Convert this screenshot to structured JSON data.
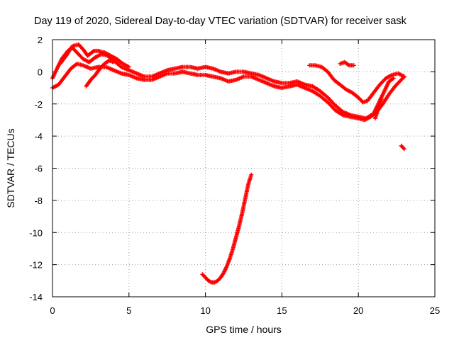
{
  "chart_data": {
    "type": "scatter",
    "title": "Day 119 of 2020, Sidereal Day-to-day VTEC variation (SDTVAR) for receiver sask",
    "xlabel": "GPS time / hours",
    "ylabel": "SDTVAR / TECUs",
    "xlim": [
      0,
      25
    ],
    "ylim": [
      -14,
      2
    ],
    "xticks": [
      0,
      5,
      10,
      15,
      20,
      25
    ],
    "yticks": [
      2,
      0,
      -2,
      -4,
      -6,
      -8,
      -10,
      -12,
      -14
    ],
    "grid": true,
    "marker": "+",
    "color": "#ff0000",
    "series": [
      {
        "name": "main-band-a",
        "points": [
          [
            0,
            -0.4
          ],
          [
            0.3,
            0.2
          ],
          [
            0.6,
            0.8
          ],
          [
            1.0,
            1.3
          ],
          [
            1.3,
            1.5
          ],
          [
            1.6,
            1.2
          ],
          [
            2.0,
            0.8
          ],
          [
            2.4,
            0.6
          ],
          [
            2.8,
            0.9
          ],
          [
            3.2,
            1.1
          ],
          [
            3.6,
            1.0
          ],
          [
            4.0,
            0.7
          ],
          [
            4.5,
            0.3
          ],
          [
            5.0,
            0.1
          ],
          [
            5.5,
            -0.1
          ],
          [
            6.0,
            -0.3
          ],
          [
            6.5,
            -0.3
          ],
          [
            7.0,
            -0.1
          ],
          [
            7.5,
            0.1
          ],
          [
            8.0,
            0.2
          ],
          [
            8.5,
            0.3
          ],
          [
            9.0,
            0.3
          ],
          [
            9.5,
            0.2
          ],
          [
            10.0,
            0.3
          ],
          [
            10.5,
            0.2
          ],
          [
            11.0,
            0.0
          ],
          [
            11.5,
            -0.1
          ],
          [
            12.0,
            0.0
          ],
          [
            12.5,
            0.0
          ],
          [
            13.0,
            -0.1
          ],
          [
            13.5,
            -0.2
          ],
          [
            14.0,
            -0.4
          ],
          [
            14.5,
            -0.6
          ],
          [
            15.0,
            -0.7
          ],
          [
            15.5,
            -0.7
          ],
          [
            16.0,
            -0.6
          ],
          [
            16.5,
            -0.8
          ],
          [
            17.0,
            -0.9
          ],
          [
            17.5,
            -1.2
          ],
          [
            18.0,
            -1.6
          ],
          [
            18.5,
            -2.1
          ],
          [
            19.0,
            -2.5
          ],
          [
            19.5,
            -2.7
          ],
          [
            20.0,
            -2.8
          ],
          [
            20.5,
            -2.9
          ],
          [
            21.0,
            -2.6
          ],
          [
            21.2,
            -2.2
          ],
          [
            21.5,
            -1.6
          ],
          [
            21.8,
            -1.0
          ],
          [
            22.0,
            -0.6
          ],
          [
            22.3,
            -0.4
          ]
        ]
      },
      {
        "name": "main-band-b",
        "points": [
          [
            0,
            -1.0
          ],
          [
            0.4,
            -0.8
          ],
          [
            0.8,
            -0.3
          ],
          [
            1.2,
            0.2
          ],
          [
            1.6,
            0.5
          ],
          [
            2.0,
            0.4
          ],
          [
            2.5,
            0.2
          ],
          [
            3.0,
            0.3
          ],
          [
            3.5,
            0.3
          ],
          [
            4.0,
            0.1
          ],
          [
            4.5,
            -0.1
          ],
          [
            5.0,
            -0.2
          ],
          [
            5.5,
            -0.4
          ],
          [
            6.0,
            -0.5
          ],
          [
            6.5,
            -0.5
          ],
          [
            7.0,
            -0.3
          ],
          [
            7.5,
            -0.1
          ],
          [
            8.0,
            -0.1
          ],
          [
            8.5,
            0.0
          ],
          [
            9.0,
            -0.1
          ],
          [
            9.5,
            -0.2
          ],
          [
            10.0,
            -0.2
          ],
          [
            10.5,
            -0.3
          ],
          [
            11.0,
            -0.4
          ],
          [
            11.5,
            -0.6
          ],
          [
            12.0,
            -0.5
          ],
          [
            12.5,
            -0.3
          ],
          [
            13.0,
            -0.3
          ],
          [
            13.5,
            -0.5
          ],
          [
            14.0,
            -0.7
          ],
          [
            14.5,
            -0.9
          ],
          [
            15.0,
            -1.0
          ],
          [
            15.5,
            -0.9
          ],
          [
            16.0,
            -0.8
          ],
          [
            16.5,
            -1.0
          ],
          [
            17.0,
            -1.2
          ],
          [
            17.5,
            -1.5
          ],
          [
            18.0,
            -1.9
          ],
          [
            18.5,
            -2.4
          ],
          [
            19.0,
            -2.7
          ],
          [
            19.5,
            -2.8
          ],
          [
            20.0,
            -2.9
          ],
          [
            20.4,
            -3.0
          ],
          [
            20.8,
            -2.8
          ],
          [
            21.2,
            -2.5
          ],
          [
            21.6,
            -2.0
          ],
          [
            22.0,
            -1.4
          ],
          [
            22.4,
            -0.9
          ],
          [
            22.8,
            -0.5
          ],
          [
            23.0,
            -0.3
          ]
        ]
      },
      {
        "name": "upper-branch",
        "points": [
          [
            0.5,
            0.5
          ],
          [
            0.9,
            1.0
          ],
          [
            1.3,
            1.6
          ],
          [
            1.7,
            1.7
          ],
          [
            2.0,
            1.4
          ],
          [
            2.3,
            1.0
          ],
          [
            2.7,
            1.3
          ],
          [
            3.0,
            1.3
          ],
          [
            3.4,
            1.2
          ],
          [
            3.8,
            1.0
          ],
          [
            4.2,
            0.8
          ],
          [
            4.6,
            0.5
          ],
          [
            5.0,
            0.3
          ]
        ]
      },
      {
        "name": "dip-branch",
        "points": [
          [
            2.2,
            -0.9
          ],
          [
            2.5,
            -0.5
          ],
          [
            2.8,
            -0.2
          ],
          [
            3.1,
            0.2
          ],
          [
            3.4,
            0.5
          ],
          [
            3.7,
            0.7
          ],
          [
            4.0,
            0.6
          ]
        ]
      },
      {
        "name": "afternoon-branch",
        "points": [
          [
            16.8,
            0.4
          ],
          [
            17.2,
            0.4
          ],
          [
            17.6,
            0.3
          ],
          [
            18.0,
            0.0
          ],
          [
            18.4,
            -0.5
          ],
          [
            18.8,
            -0.8
          ],
          [
            19.2,
            -1.1
          ],
          [
            19.6,
            -1.3
          ],
          [
            20.0,
            -1.6
          ],
          [
            20.3,
            -1.9
          ],
          [
            20.6,
            -1.8
          ],
          [
            21.0,
            -1.3
          ],
          [
            21.4,
            -0.8
          ],
          [
            21.8,
            -0.4
          ],
          [
            22.2,
            -0.2
          ],
          [
            22.6,
            -0.1
          ],
          [
            23.0,
            -0.3
          ]
        ]
      },
      {
        "name": "branch-19h",
        "points": [
          [
            18.8,
            0.5
          ],
          [
            19.1,
            0.6
          ],
          [
            19.4,
            0.4
          ],
          [
            19.7,
            0.4
          ]
        ]
      },
      {
        "name": "tail-21h",
        "points": [
          [
            21.1,
            -2.9
          ],
          [
            21.2,
            -2.6
          ],
          [
            21.3,
            -2.3
          ],
          [
            21.4,
            -2.0
          ],
          [
            21.5,
            -1.7
          ]
        ]
      },
      {
        "name": "outlier-23h",
        "points": [
          [
            22.8,
            -4.6
          ],
          [
            22.9,
            -4.7
          ],
          [
            23.0,
            -4.8
          ]
        ]
      },
      {
        "name": "negative-arc",
        "points": [
          [
            9.8,
            -12.6
          ],
          [
            10.0,
            -12.8
          ],
          [
            10.2,
            -13.0
          ],
          [
            10.4,
            -13.1
          ],
          [
            10.6,
            -13.1
          ],
          [
            10.8,
            -13.0
          ],
          [
            11.0,
            -12.8
          ],
          [
            11.2,
            -12.5
          ],
          [
            11.4,
            -12.1
          ],
          [
            11.6,
            -11.6
          ],
          [
            11.8,
            -11.0
          ],
          [
            12.0,
            -10.3
          ],
          [
            12.2,
            -9.6
          ],
          [
            12.4,
            -8.8
          ],
          [
            12.6,
            -7.9
          ],
          [
            12.8,
            -7.0
          ],
          [
            13.0,
            -6.4
          ]
        ]
      }
    ]
  }
}
